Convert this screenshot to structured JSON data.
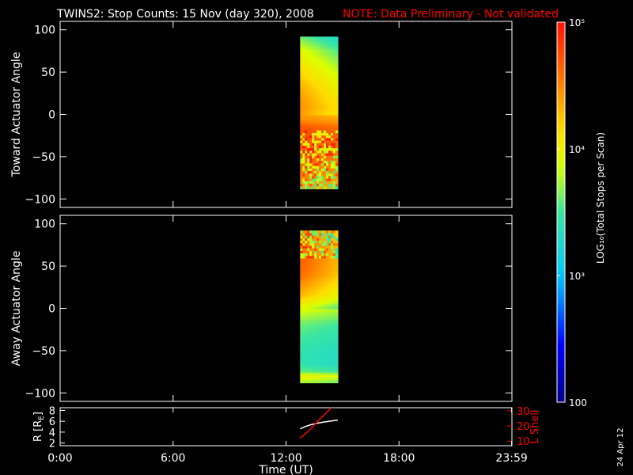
{
  "title": "TWINS2: Stop Counts: 15 Nov (day 320), 2008",
  "note": "NOTE: Data Preliminary - Not validated",
  "datestamp": "24 Apr 12",
  "colorbar": {
    "label": "LOG₁₀(Total Stops per Scan)",
    "ticks": [
      "10⁵",
      "10⁴",
      "10³",
      "100"
    ],
    "tick_values": [
      5,
      4,
      3,
      2
    ]
  },
  "colors": {
    "background": "#000000",
    "foreground": "#ffffff",
    "accent": "#ff0000"
  },
  "chart_data": [
    {
      "type": "heatmap",
      "ylabel": "Toward Actuator Angle",
      "ylim": [
        -110,
        110
      ],
      "yticks": [
        100,
        50,
        0,
        -50,
        -100
      ],
      "xlim": [
        0,
        24
      ],
      "x_range_hours": [
        12.75,
        14.75
      ],
      "y_range_deg": [
        -88,
        92
      ],
      "color_scale_log10": [
        2,
        5
      ],
      "profile": [
        {
          "angle": 92,
          "log10": 3.6
        },
        {
          "angle": 75,
          "log10": 3.9
        },
        {
          "angle": 55,
          "log10": 4.1
        },
        {
          "angle": 35,
          "log10": 4.3
        },
        {
          "angle": 20,
          "log10": 4.4
        },
        {
          "angle": 8,
          "log10": 4.45
        },
        {
          "angle": 0,
          "log10": 4.4
        },
        {
          "angle": -8,
          "log10": 4.5
        },
        {
          "angle": -15,
          "log10": 4.7
        },
        {
          "angle": -25,
          "log10": 4.75
        },
        {
          "angle": -40,
          "log10": 4.7
        },
        {
          "angle": -60,
          "log10": 4.6
        },
        {
          "angle": -75,
          "log10": 4.5
        },
        {
          "angle": -88,
          "log10": 4.4
        }
      ],
      "noisy_range_deg": [
        -88,
        -20
      ]
    },
    {
      "type": "heatmap",
      "ylabel": "Away Actuator Angle",
      "ylim": [
        -110,
        110
      ],
      "yticks": [
        100,
        50,
        0,
        -50,
        -100
      ],
      "xlim": [
        0,
        24
      ],
      "x_range_hours": [
        12.75,
        14.75
      ],
      "y_range_deg": [
        -88,
        92
      ],
      "color_scale_log10": [
        2,
        5
      ],
      "profile": [
        {
          "angle": 92,
          "log10": 4.5
        },
        {
          "angle": 75,
          "log10": 4.6
        },
        {
          "angle": 55,
          "log10": 4.65
        },
        {
          "angle": 40,
          "log10": 4.6
        },
        {
          "angle": 28,
          "log10": 4.45
        },
        {
          "angle": 15,
          "log10": 4.3
        },
        {
          "angle": 0,
          "log10": 3.9
        },
        {
          "angle": -20,
          "log10": 3.6
        },
        {
          "angle": -45,
          "log10": 3.45
        },
        {
          "angle": -65,
          "log10": 3.4
        },
        {
          "angle": -75,
          "log10": 3.6
        },
        {
          "angle": -80,
          "log10": 4.0
        },
        {
          "angle": -88,
          "log10": 3.7
        }
      ],
      "noisy_range_deg": [
        60,
        92
      ]
    },
    {
      "type": "line",
      "ylabel": "R [R_E]",
      "ylabel_parts": [
        "R [R",
        "E",
        "]"
      ],
      "y2label": "L Shell",
      "xlabel": "Time (UT)",
      "xlim": [
        0,
        24
      ],
      "xticks": [
        0,
        6,
        12,
        18,
        23.983
      ],
      "xtick_labels": [
        "0:00",
        "6:00",
        "12:00",
        "18:00",
        "23:59"
      ],
      "ylim": [
        1.5,
        8.5
      ],
      "yticks": [
        2,
        4,
        6,
        8
      ],
      "y2lim": [
        7,
        32
      ],
      "y2ticks": [
        10,
        20,
        30
      ],
      "series": [
        {
          "axis": "left",
          "color": "#ffffff",
          "x": [
            12.75,
            13.0,
            13.3,
            13.6,
            14.0,
            14.4,
            14.75
          ],
          "y": [
            4.6,
            5.0,
            5.35,
            5.6,
            5.85,
            6.05,
            6.2
          ]
        },
        {
          "axis": "right",
          "color": "#ff0000",
          "x": [
            12.75,
            13.0,
            13.3,
            13.6,
            14.0,
            14.4
          ],
          "y": [
            12,
            14.5,
            18,
            22,
            27,
            32
          ]
        }
      ]
    }
  ]
}
